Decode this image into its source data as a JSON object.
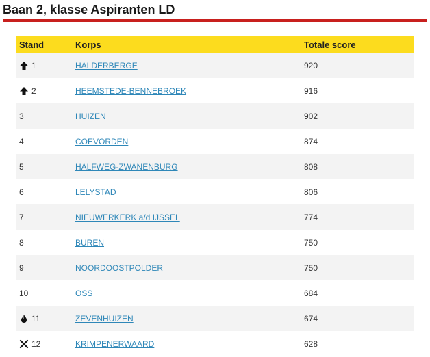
{
  "page": {
    "title": "Baan 2, klasse Aspiranten LD"
  },
  "table": {
    "headers": {
      "stand": "Stand",
      "korps": "Korps",
      "score": "Totale score"
    },
    "rows": [
      {
        "stand": "1",
        "icon": "arrow-up-icon",
        "korps": "HALDERBERGE",
        "score": "920"
      },
      {
        "stand": "2",
        "icon": "arrow-up-icon",
        "korps": "HEEMSTEDE-BENNEBROEK",
        "score": "916"
      },
      {
        "stand": "3",
        "icon": "",
        "korps": "HUIZEN",
        "score": "902"
      },
      {
        "stand": "4",
        "icon": "",
        "korps": "COEVORDEN",
        "score": "874"
      },
      {
        "stand": "5",
        "icon": "",
        "korps": "HALFWEG-ZWANENBURG",
        "score": "808"
      },
      {
        "stand": "6",
        "icon": "",
        "korps": "LELYSTAD",
        "score": "806"
      },
      {
        "stand": "7",
        "icon": "",
        "korps": "NIEUWERKERK a/d IJSSEL",
        "score": "774"
      },
      {
        "stand": "8",
        "icon": "",
        "korps": "BUREN",
        "score": "750"
      },
      {
        "stand": "9",
        "icon": "",
        "korps": "NOORDOOSTPOLDER",
        "score": "750"
      },
      {
        "stand": "10",
        "icon": "",
        "korps": "OSS",
        "score": "684"
      },
      {
        "stand": "11",
        "icon": "flame-icon",
        "korps": "ZEVENHUIZEN",
        "score": "674"
      },
      {
        "stand": "12",
        "icon": "cross-icon",
        "korps": "KRIMPENERWAARD",
        "score": "628"
      }
    ]
  },
  "colors": {
    "header_bg": "#fcdc1e",
    "title_rule": "#c8201e",
    "link": "#2e87b8",
    "row_alt": "#f3f3f3"
  }
}
